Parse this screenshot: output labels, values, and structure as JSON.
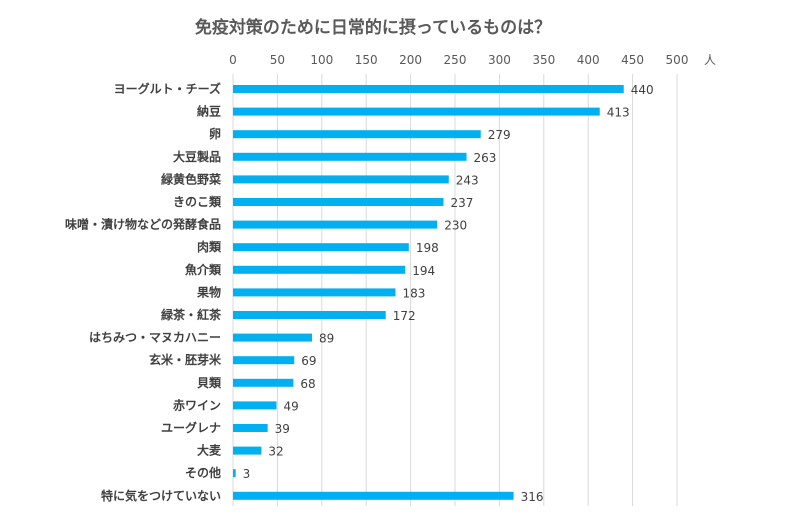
{
  "chart_data": {
    "type": "bar",
    "orientation": "horizontal",
    "title": "免疫対策のために日常的に摂っているものは？",
    "xlabel": "人",
    "xlim": [
      0,
      500
    ],
    "xticks": [
      0,
      50,
      100,
      150,
      200,
      250,
      300,
      350,
      400,
      450,
      500
    ],
    "grid": true,
    "bar_color": "#00B0F0",
    "categories": [
      "ヨーグルト・チーズ",
      "納豆",
      "卵",
      "大豆製品",
      "緑黄色野菜",
      "きのこ類",
      "味噌・漬け物などの発酵食品",
      "肉類",
      "魚介類",
      "果物",
      "緑茶・紅茶",
      "はちみつ・マヌカハニー",
      "玄米・胚芽米",
      "貝類",
      "赤ワイン",
      "ユーグレナ",
      "大麦",
      "その他",
      "特に気をつけていない"
    ],
    "values": [
      440,
      413,
      279,
      263,
      243,
      237,
      230,
      198,
      194,
      183,
      172,
      89,
      69,
      68,
      49,
      39,
      32,
      3,
      316
    ]
  }
}
